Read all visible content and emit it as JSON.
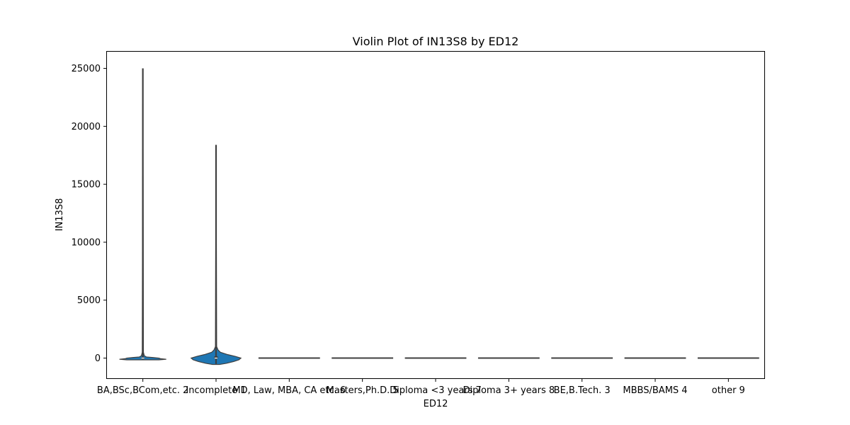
{
  "chart_data": {
    "type": "violin",
    "title": "Violin Plot of IN13S8 by ED12",
    "xlabel": "ED12",
    "ylabel": "IN13S8",
    "categories": [
      "BA,BSc,BCom,etc. 2",
      "Incomplete 1",
      "MD, Law, MBA, CA etc. 6",
      "Masters,Ph.D. 5",
      "Diploma <3 years 7",
      "Diploma 3+ years 8",
      "BE,B.Tech. 3",
      "MBBS/BAMS 4",
      "other 9"
    ],
    "yticks": [
      0,
      5000,
      10000,
      15000,
      20000,
      25000
    ],
    "ylim": [
      -1800,
      26500
    ],
    "color": "#1f77b4",
    "edge_color": "#3f3f3f",
    "violins": [
      {
        "category": "BA,BSc,BCom,etc. 2",
        "min": -100,
        "max": 25000,
        "median": 0,
        "q1": 0,
        "q3": 50,
        "profile": [
          [
            -150,
            0.55
          ],
          [
            -100,
            0.8
          ],
          [
            -50,
            0.6
          ],
          [
            0,
            0.55
          ],
          [
            50,
            0.35
          ],
          [
            100,
            0.12
          ],
          [
            200,
            0.05
          ],
          [
            500,
            0.02
          ],
          [
            25000,
            0.0
          ]
        ]
      },
      {
        "category": "Incomplete 1",
        "min": -500,
        "max": 18400,
        "median": 0,
        "q1": -50,
        "q3": 150,
        "profile": [
          [
            -550,
            0.12
          ],
          [
            -450,
            0.35
          ],
          [
            -300,
            0.6
          ],
          [
            -150,
            0.78
          ],
          [
            0,
            0.85
          ],
          [
            150,
            0.65
          ],
          [
            300,
            0.4
          ],
          [
            500,
            0.15
          ],
          [
            700,
            0.07
          ],
          [
            1000,
            0.02
          ],
          [
            18400,
            0.0
          ]
        ]
      },
      {
        "category": "MD, Law, MBA, CA etc. 6",
        "min": 0,
        "max": 0,
        "median": 0,
        "q1": 0,
        "q3": 0,
        "profile": []
      },
      {
        "category": "Masters,Ph.D. 5",
        "min": 0,
        "max": 0,
        "median": 0,
        "q1": 0,
        "q3": 0,
        "profile": []
      },
      {
        "category": "Diploma <3 years 7",
        "min": 0,
        "max": 0,
        "median": 0,
        "q1": 0,
        "q3": 0,
        "profile": []
      },
      {
        "category": "Diploma 3+ years 8",
        "min": 0,
        "max": 0,
        "median": 0,
        "q1": 0,
        "q3": 0,
        "profile": []
      },
      {
        "category": "BE,B.Tech. 3",
        "min": 0,
        "max": 0,
        "median": 0,
        "q1": 0,
        "q3": 0,
        "profile": []
      },
      {
        "category": "MBBS/BAMS 4",
        "min": 0,
        "max": 0,
        "median": 0,
        "q1": 0,
        "q3": 0,
        "profile": []
      },
      {
        "category": "other 9",
        "min": 0,
        "max": 0,
        "median": 0,
        "q1": 0,
        "q3": 0,
        "profile": []
      }
    ],
    "grid": false,
    "legend": "none"
  }
}
